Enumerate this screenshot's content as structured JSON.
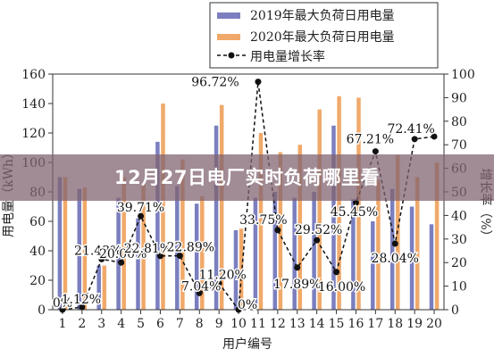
{
  "banner": {
    "title": "12月27日电厂实时负荷哪里看"
  },
  "chart_data": {
    "type": "bar",
    "categories": [
      "1",
      "2",
      "3",
      "4",
      "5",
      "6",
      "7",
      "8",
      "9",
      "10",
      "11",
      "12",
      "13",
      "14",
      "15",
      "16",
      "17",
      "18",
      "19",
      "20"
    ],
    "xlabel": "用户编号",
    "ylabel": "用电量（kWh）",
    "y2label": "增长率（%）",
    "ylim": [
      0,
      160
    ],
    "y2lim": [
      0,
      100
    ],
    "yticks": [
      0,
      20,
      40,
      60,
      80,
      100,
      120,
      140,
      160
    ],
    "y2ticks": [
      0,
      10,
      20,
      30,
      40,
      50,
      60,
      70,
      80,
      90,
      100
    ],
    "legend_position": "top-right",
    "grid": false,
    "colors": {
      "series2019": "#7b7fbf",
      "series2020": "#f0a96a",
      "growth": "#111111"
    },
    "series": [
      {
        "name": "2019年最大负荷日用电量",
        "type": "bar",
        "values": [
          90,
          82,
          30,
          76,
          62,
          114,
          84,
          72,
          125,
          54,
          76,
          80,
          76,
          80,
          125,
          75,
          60,
          82,
          70,
          58
        ]
      },
      {
        "name": "2020年最大负荷日用电量",
        "type": "bar",
        "values": [
          90,
          83,
          30,
          90,
          85,
          140,
          102,
          77,
          139,
          55,
          120,
          107,
          112,
          136,
          145,
          144,
          88,
          105,
          90,
          100
        ]
      },
      {
        "name": "用电量增长率",
        "type": "line",
        "axis": "right",
        "values": [
          0,
          1.12,
          21.43,
          20.0,
          39.71,
          22.81,
          22.89,
          7.04,
          11.2,
          0,
          96.72,
          33.75,
          17.89,
          29.52,
          16.0,
          45.45,
          67.21,
          28.04,
          72.41,
          73.5
        ]
      }
    ],
    "annotations": [
      {
        "text": "0%",
        "index": 0
      },
      {
        "text": "1.12%",
        "index": 1
      },
      {
        "text": "21.43%",
        "index": 2
      },
      {
        "text": "20.00%",
        "index": 3
      },
      {
        "text": "39.71%",
        "index": 4
      },
      {
        "text": "22.81%",
        "index": 5
      },
      {
        "text": "22.89%",
        "index": 6
      },
      {
        "text": "7.04%",
        "index": 7
      },
      {
        "text": "11.20%",
        "index": 8
      },
      {
        "text": "0%",
        "index": 9
      },
      {
        "text": "96.72%",
        "index": 10
      },
      {
        "text": "33.75%",
        "index": 11
      },
      {
        "text": "17.89%",
        "index": 12
      },
      {
        "text": "29.52%",
        "index": 13
      },
      {
        "text": "16.00%",
        "index": 14
      },
      {
        "text": "45.45%",
        "index": 15
      },
      {
        "text": "67.21%",
        "index": 16
      },
      {
        "text": "28.04%",
        "index": 17
      },
      {
        "text": "72.41%",
        "index": 18
      }
    ]
  }
}
